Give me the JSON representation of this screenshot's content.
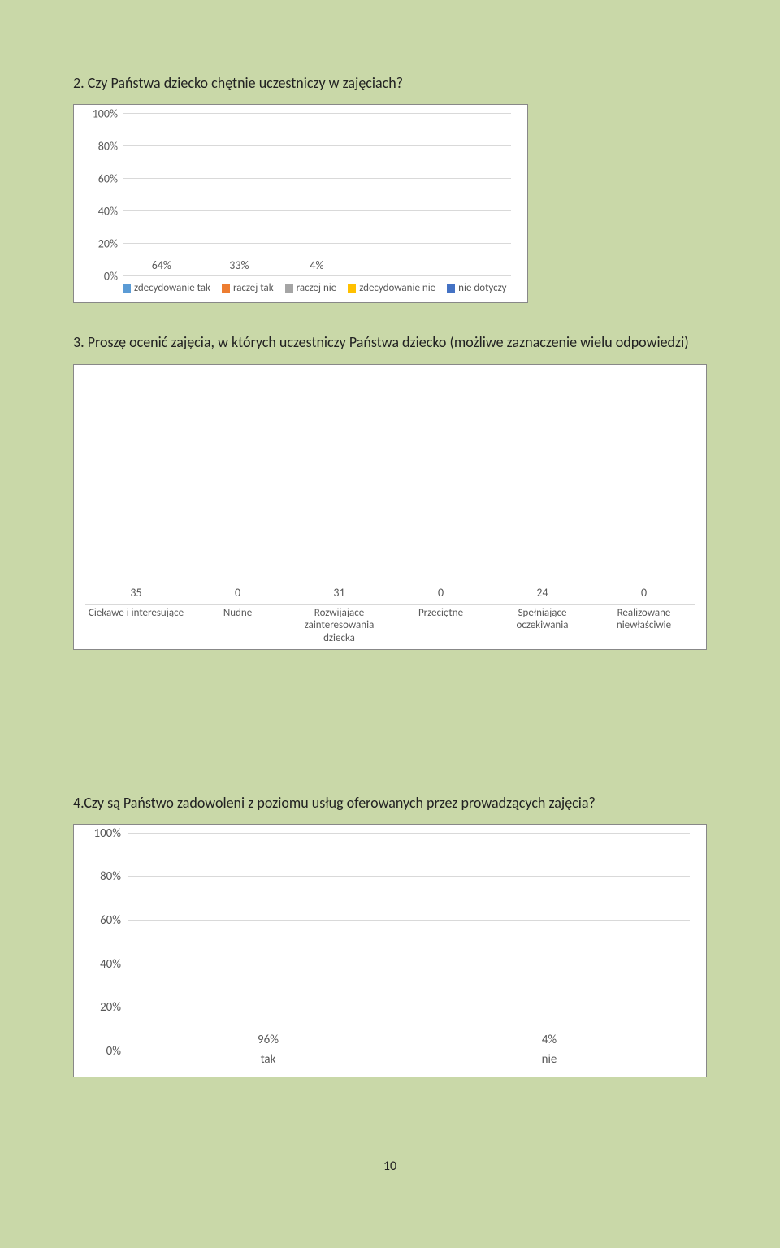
{
  "page_number": "10",
  "background_color": "#c9d8a8",
  "chart_box_bg": "#ffffff",
  "grid_color": "#d9d9d9",
  "q2": {
    "title": "2. Czy Państwa dziecko chętnie uczestniczy w zajęciach?",
    "type": "bar",
    "yticks": [
      "0%",
      "20%",
      "40%",
      "60%",
      "80%",
      "100%"
    ],
    "ymax": 100,
    "series": [
      {
        "label": "zdecydowanie tak",
        "value": 64,
        "display": "64%",
        "color": "#5b9bd5"
      },
      {
        "label": "raczej tak",
        "value": 33,
        "display": "33%",
        "color": "#ed7d31"
      },
      {
        "label": "raczej nie",
        "value": 4,
        "display": "4%",
        "color": "#a5a5a5"
      },
      {
        "label": "zdecydowanie nie",
        "value": 0,
        "display": "",
        "color": "#ffc000"
      },
      {
        "label": "nie dotyczy",
        "value": 0,
        "display": "",
        "color": "#4472c4"
      }
    ]
  },
  "q3": {
    "title": "3. Proszę ocenić zajęcia, w których uczestniczy Państwa dziecko (możliwe zaznaczenie wielu odpowiedzi)",
    "type": "bar",
    "ymax": 36,
    "bar_color": "#5b9bd5",
    "categories": [
      {
        "label": "Ciekawe i interesujące",
        "value": 35,
        "display": "35"
      },
      {
        "label": "Nudne",
        "value": 0,
        "display": "0"
      },
      {
        "label": "Rozwijające zainteresowania dziecka",
        "value": 31,
        "display": "31"
      },
      {
        "label": "Przeciętne",
        "value": 0,
        "display": "0"
      },
      {
        "label": "Spełniające oczekiwania",
        "value": 24,
        "display": "24"
      },
      {
        "label": "Realizowane niewłaściwie",
        "value": 0,
        "display": "0"
      }
    ]
  },
  "q4": {
    "title": "4.Czy są Państwo zadowoleni z poziomu usług oferowanych przez prowadzących zajęcia?",
    "type": "bar",
    "yticks": [
      "0%",
      "20%",
      "40%",
      "60%",
      "80%",
      "100%"
    ],
    "ymax": 100,
    "bar_color": "#5b9bd5",
    "categories": [
      {
        "label": "tak",
        "value": 96,
        "display": "96%"
      },
      {
        "label": "nie",
        "value": 4,
        "display": "4%"
      }
    ]
  }
}
